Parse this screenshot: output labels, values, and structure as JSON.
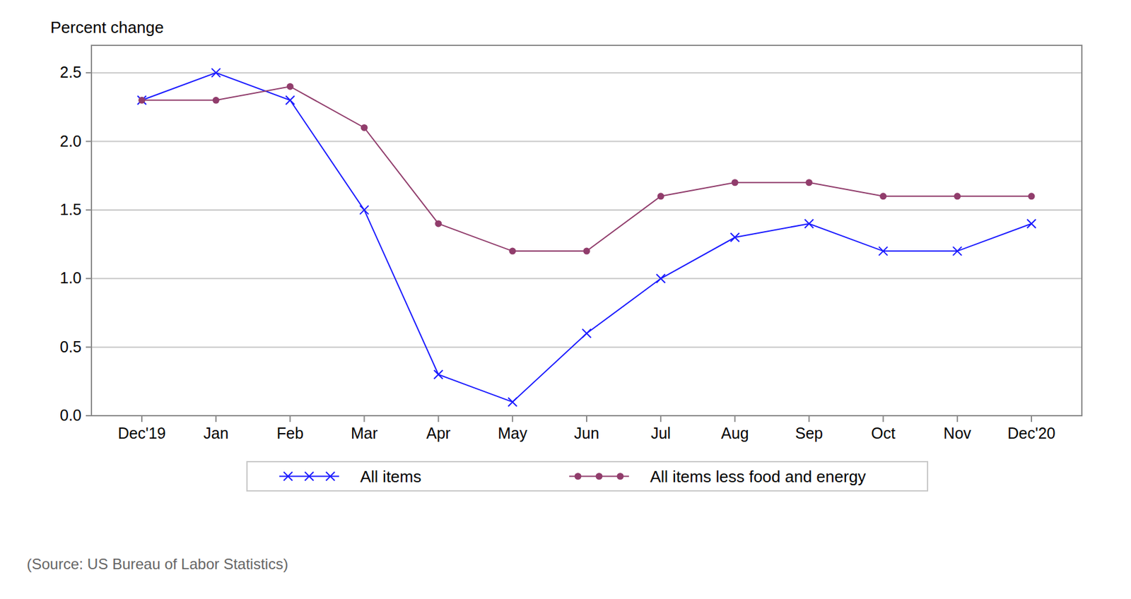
{
  "chart_data": {
    "type": "line",
    "y_label": "Percent change",
    "source": "(Source: US Bureau of Labor Statistics)",
    "categories": [
      "Dec'19",
      "Jan",
      "Feb",
      "Mar",
      "Apr",
      "May",
      "Jun",
      "Jul",
      "Aug",
      "Sep",
      "Oct",
      "Nov",
      "Dec'20"
    ],
    "series": [
      {
        "name": "All items",
        "color": "#1a1aff",
        "marker": "x",
        "values": [
          2.3,
          2.5,
          2.3,
          1.5,
          0.3,
          0.1,
          0.6,
          1.0,
          1.3,
          1.4,
          1.2,
          1.2,
          1.4
        ]
      },
      {
        "name": "All items less food and energy",
        "color": "#913d6c",
        "marker": "circle",
        "values": [
          2.3,
          2.3,
          2.4,
          2.1,
          1.4,
          1.2,
          1.2,
          1.6,
          1.7,
          1.7,
          1.6,
          1.6,
          1.6
        ]
      }
    ],
    "ylim": [
      0,
      2.7
    ],
    "yticks": [
      {
        "value": 0,
        "label": "0.0"
      },
      0.5,
      {
        "value": 1,
        "label": "1.0"
      },
      1.5,
      {
        "value": 2,
        "label": "2.0"
      },
      2.5
    ],
    "grid": true,
    "legend": "bottom"
  }
}
